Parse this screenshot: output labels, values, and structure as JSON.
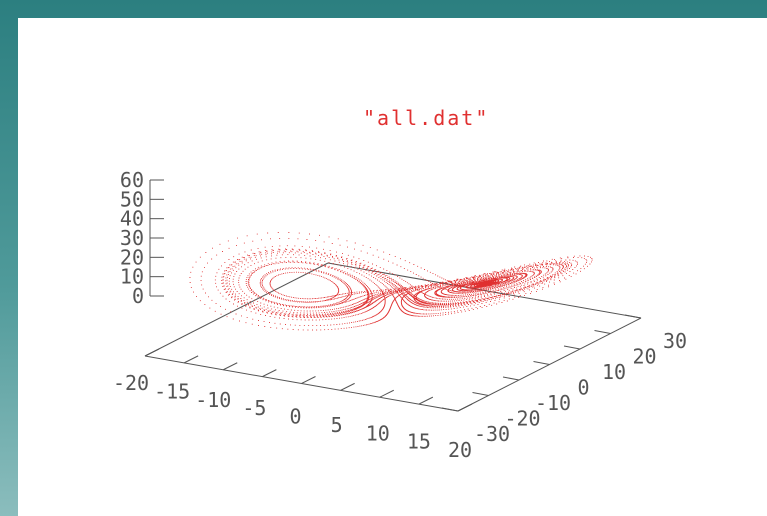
{
  "chart_data": {
    "type": "scatter",
    "subtype": "3d-dotted-trajectory",
    "title": "\"all.dat\"",
    "series": [
      {
        "name": "all.dat",
        "color": "#e03030",
        "description_shape": "butterfly double-loop attractor"
      }
    ],
    "x_axis": {
      "range": [
        -20,
        20
      ],
      "ticks": [
        "-20",
        "-15",
        "-10",
        "-5",
        "0",
        "5",
        "10",
        "15",
        "20"
      ]
    },
    "y_axis": {
      "range": [
        -30,
        30
      ],
      "ticks": [
        "-30",
        "-20",
        "-10",
        "0",
        "10",
        "20",
        "30"
      ]
    },
    "z_axis": {
      "range": [
        0,
        60
      ],
      "ticks": [
        "0",
        "10",
        "20",
        "30",
        "40",
        "50",
        "60"
      ]
    },
    "grid": false,
    "colors": {
      "axis": "#555555",
      "data": "#e03030"
    }
  }
}
